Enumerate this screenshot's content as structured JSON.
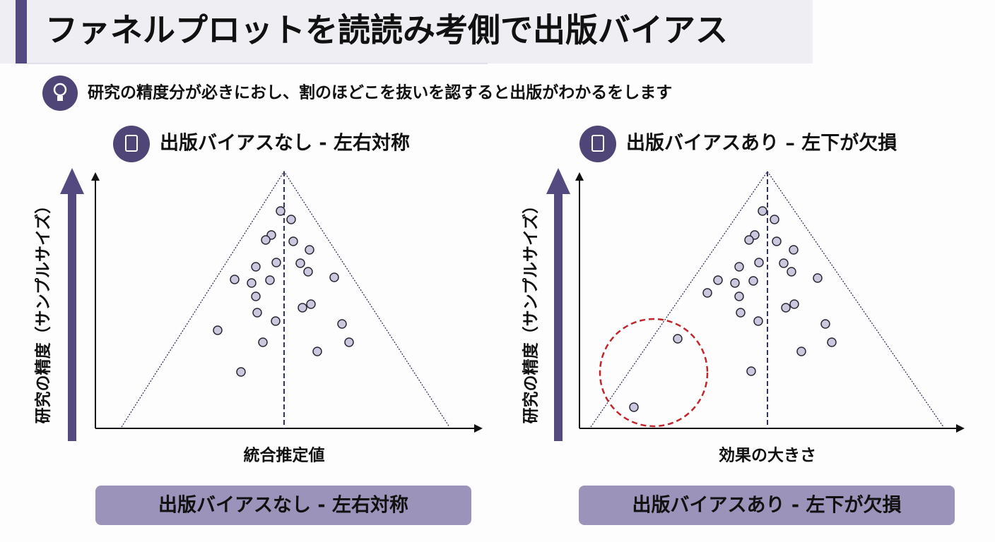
{
  "header": {
    "title": "ファネルプロットを読読み考側で出版バイアス"
  },
  "subtitle": "研究の精度分が必きにおし、割のほどこを抜いを認すると出版がわかるをします",
  "panels": [
    {
      "title": "出版バイアスなし - 左右対称",
      "y_label": "研究の精度（サンプルサイズ）",
      "x_label": "統合推定値",
      "caption": "出版バイアスなし - 左右対称"
    },
    {
      "title": "出版バイアスあり – 左下が欠損",
      "y_label": "研究の精度（サンプルサイズ）",
      "x_label": "効果の大きさ",
      "caption": "出版バイアスあり - 左下が欠損"
    }
  ]
}
